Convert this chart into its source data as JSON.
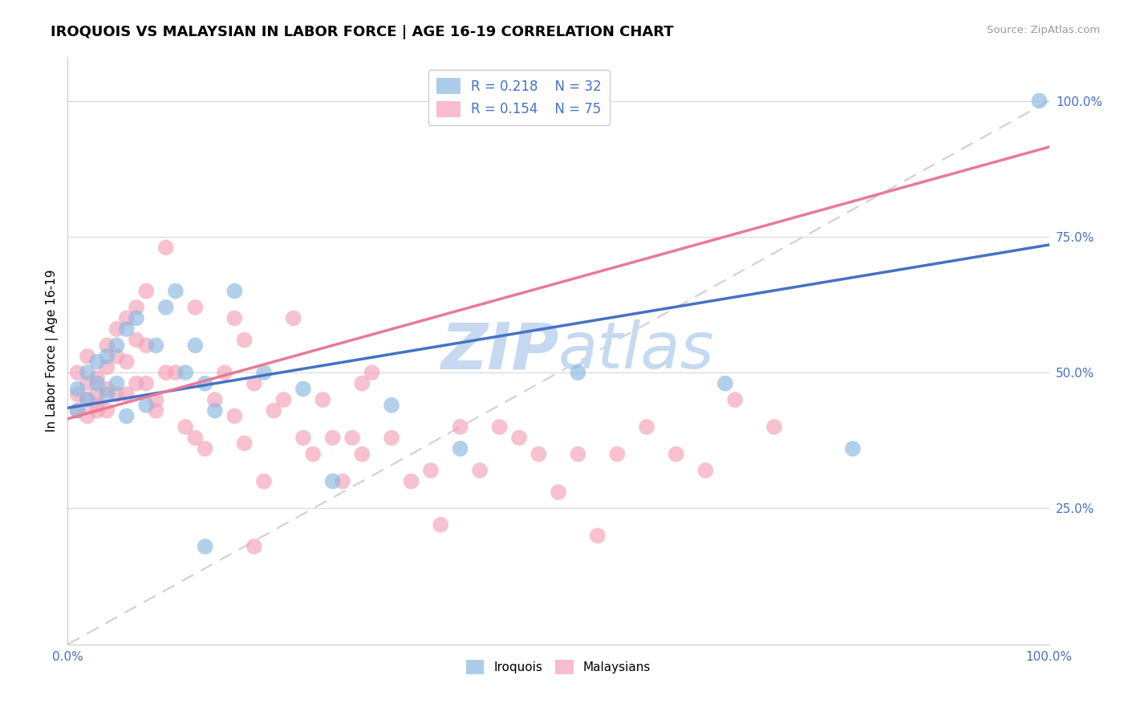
{
  "title": "IROQUOIS VS MALAYSIAN IN LABOR FORCE | AGE 16-19 CORRELATION CHART",
  "source_text": "Source: ZipAtlas.com",
  "ylabel": "In Labor Force | Age 16-19",
  "x_min": 0.0,
  "x_max": 1.0,
  "y_min": 0.0,
  "y_max": 1.08,
  "iroquois_color": "#89b8e0",
  "malaysian_color": "#f4a0b8",
  "trend_iroquois_color": "#4472c4",
  "trend_malaysian_color": "#e87a96",
  "diagonal_color": "#d0d0d0",
  "watermark_color": "#c5d9f0",
  "grid_color": "#d8d8d8",
  "R_irq": 0.218,
  "N_irq": 32,
  "R_mal": 0.154,
  "N_mal": 75,
  "irq_intercept": 0.435,
  "irq_slope": 0.3,
  "mal_intercept": 0.415,
  "mal_slope": 0.5,
  "iroquois_x": [
    0.01,
    0.01,
    0.02,
    0.02,
    0.03,
    0.03,
    0.04,
    0.04,
    0.05,
    0.05,
    0.06,
    0.06,
    0.07,
    0.08,
    0.09,
    0.1,
    0.11,
    0.12,
    0.13,
    0.14,
    0.15,
    0.17,
    0.2,
    0.24,
    0.27,
    0.33,
    0.4,
    0.52,
    0.67,
    0.8,
    0.14,
    0.99
  ],
  "iroquois_y": [
    0.43,
    0.47,
    0.5,
    0.45,
    0.48,
    0.52,
    0.46,
    0.53,
    0.55,
    0.48,
    0.42,
    0.58,
    0.6,
    0.44,
    0.55,
    0.62,
    0.65,
    0.5,
    0.55,
    0.48,
    0.43,
    0.65,
    0.5,
    0.47,
    0.3,
    0.44,
    0.36,
    0.5,
    0.48,
    0.36,
    0.18,
    1.0
  ],
  "malaysian_x": [
    0.01,
    0.01,
    0.01,
    0.02,
    0.02,
    0.02,
    0.02,
    0.03,
    0.03,
    0.03,
    0.03,
    0.04,
    0.04,
    0.04,
    0.04,
    0.05,
    0.05,
    0.05,
    0.06,
    0.06,
    0.06,
    0.07,
    0.07,
    0.07,
    0.08,
    0.08,
    0.08,
    0.09,
    0.09,
    0.1,
    0.1,
    0.11,
    0.12,
    0.13,
    0.13,
    0.14,
    0.15,
    0.16,
    0.17,
    0.17,
    0.18,
    0.18,
    0.19,
    0.2,
    0.21,
    0.22,
    0.23,
    0.24,
    0.25,
    0.26,
    0.27,
    0.28,
    0.29,
    0.3,
    0.31,
    0.33,
    0.35,
    0.37,
    0.38,
    0.4,
    0.42,
    0.44,
    0.46,
    0.48,
    0.5,
    0.52,
    0.54,
    0.56,
    0.59,
    0.62,
    0.65,
    0.68,
    0.72,
    0.3,
    0.19
  ],
  "malaysian_y": [
    0.43,
    0.46,
    0.5,
    0.42,
    0.45,
    0.48,
    0.53,
    0.43,
    0.46,
    0.49,
    0.44,
    0.43,
    0.47,
    0.51,
    0.55,
    0.58,
    0.46,
    0.53,
    0.6,
    0.46,
    0.52,
    0.62,
    0.56,
    0.48,
    0.65,
    0.55,
    0.48,
    0.45,
    0.43,
    0.73,
    0.5,
    0.5,
    0.4,
    0.38,
    0.62,
    0.36,
    0.45,
    0.5,
    0.42,
    0.6,
    0.37,
    0.56,
    0.48,
    0.3,
    0.43,
    0.45,
    0.6,
    0.38,
    0.35,
    0.45,
    0.38,
    0.3,
    0.38,
    0.35,
    0.5,
    0.38,
    0.3,
    0.32,
    0.22,
    0.4,
    0.32,
    0.4,
    0.38,
    0.35,
    0.28,
    0.35,
    0.2,
    0.35,
    0.4,
    0.35,
    0.32,
    0.45,
    0.4,
    0.48,
    0.18
  ]
}
